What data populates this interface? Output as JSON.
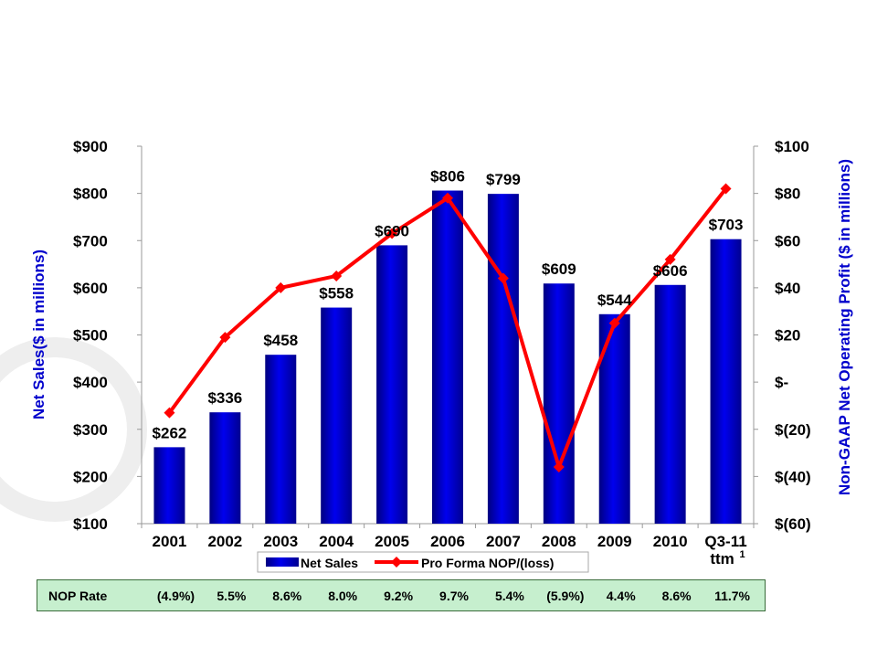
{
  "chart_data": {
    "type": "bar+line",
    "categories": [
      "2001",
      "2002",
      "2003",
      "2004",
      "2005",
      "2006",
      "2007",
      "2008",
      "2009",
      "2010",
      "Q3-11"
    ],
    "last_category_sub": "ttm",
    "last_category_sup": "1",
    "series": [
      {
        "name": "Net Sales",
        "type": "bar",
        "axis": "left",
        "values": [
          262,
          336,
          458,
          558,
          690,
          806,
          799,
          609,
          544,
          606,
          703
        ],
        "labels": [
          "$262",
          "$336",
          "$458",
          "$558",
          "$690",
          "$806",
          "$799",
          "$609",
          "$544",
          "$606",
          "$703"
        ]
      },
      {
        "name": "Pro Forma NOP/(loss)",
        "type": "line",
        "axis": "right",
        "values": [
          -13,
          19,
          40,
          45,
          63,
          78,
          44,
          -36,
          25,
          52,
          82
        ]
      }
    ],
    "left_axis": {
      "title": "Net Sales($ in millions)",
      "min": 100,
      "max": 900,
      "ticks": [
        {
          "v": 100,
          "t": "$100"
        },
        {
          "v": 200,
          "t": "$200"
        },
        {
          "v": 300,
          "t": "$300"
        },
        {
          "v": 400,
          "t": "$400"
        },
        {
          "v": 500,
          "t": "$500"
        },
        {
          "v": 600,
          "t": "$600"
        },
        {
          "v": 700,
          "t": "$700"
        },
        {
          "v": 800,
          "t": "$800"
        },
        {
          "v": 900,
          "t": "$900"
        }
      ]
    },
    "right_axis": {
      "title": "Non-GAAP Net Operating Profit ($ in millions)",
      "min": -60,
      "max": 100,
      "ticks": [
        {
          "v": -60,
          "t": "$(60)"
        },
        {
          "v": -40,
          "t": "$(40)"
        },
        {
          "v": -20,
          "t": "$(20)"
        },
        {
          "v": 0,
          "t": "$-"
        },
        {
          "v": 20,
          "t": "$20"
        },
        {
          "v": 40,
          "t": "$40"
        },
        {
          "v": 60,
          "t": "$60"
        },
        {
          "v": 80,
          "t": "$80"
        },
        {
          "v": 100,
          "t": "$100"
        }
      ]
    },
    "legend": {
      "position": "bottom"
    },
    "colors": {
      "bar": "#0000e0",
      "bar_dark": "#000080",
      "line": "#ff0000"
    }
  },
  "nop_rate": {
    "label": "NOP Rate",
    "values": [
      "(4.9%)",
      "5.5%",
      "8.6%",
      "8.0%",
      "9.2%",
      "9.7%",
      "5.4%",
      "(5.9%)",
      "4.4%",
      "8.6%",
      "11.7%"
    ]
  }
}
